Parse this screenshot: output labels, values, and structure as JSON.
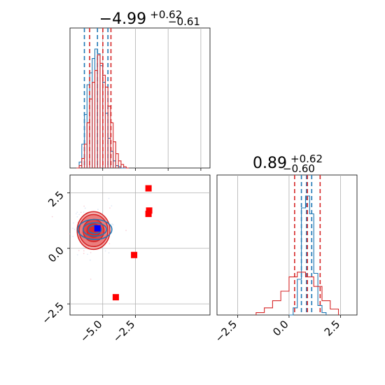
{
  "colors": {
    "series_a": "#1f77b4",
    "series_b": "#d62728",
    "grid": "#b0b0b0",
    "marker_red": "#ff0000",
    "marker_blue": "#0000ff"
  },
  "chart_data": [
    {
      "panel": "top-left",
      "type": "histogram",
      "title": {
        "main": "−4.99",
        "sup": "+0.62",
        "sub": "−0.61"
      },
      "xlim": [
        -7.5,
        3.2
      ],
      "grid": true,
      "series": [
        {
          "color": "#1f77b4",
          "bins": [
            -7.0,
            -6.8,
            -6.6,
            -6.4,
            -6.2,
            -6.0,
            -5.8,
            -5.6,
            -5.4,
            -5.2,
            -5.0,
            -4.8,
            -4.6,
            -4.4,
            -4.2,
            -4.0,
            -3.8,
            -3.6,
            -3.4,
            -3.2,
            -3.0
          ],
          "heights": [
            0,
            0.05,
            0.2,
            0.45,
            0.7,
            0.8,
            0.92,
            1.0,
            0.96,
            0.86,
            0.72,
            0.46,
            0.25,
            0.14,
            0.06,
            0.02,
            0.01,
            0,
            0,
            0,
            0
          ],
          "quantile_lines": [
            -6.4,
            -5.4,
            -4.6
          ]
        },
        {
          "color": "#d62728",
          "bins": [
            -7.0,
            -6.8,
            -6.6,
            -6.4,
            -6.2,
            -6.0,
            -5.8,
            -5.6,
            -5.4,
            -5.2,
            -5.0,
            -4.8,
            -4.6,
            -4.4,
            -4.2,
            -4.0,
            -3.8,
            -3.6,
            -3.4,
            -3.2,
            -3.0
          ],
          "heights": [
            0,
            0.02,
            0.08,
            0.2,
            0.38,
            0.58,
            0.72,
            0.82,
            0.95,
            0.88,
            0.78,
            0.68,
            0.52,
            0.38,
            0.22,
            0.12,
            0.06,
            0.03,
            0.01,
            0,
            0
          ],
          "quantile_lines": [
            -6.0,
            -4.99,
            -4.37
          ]
        }
      ]
    },
    {
      "panel": "bottom-right",
      "type": "histogram",
      "title": {
        "main": "0.89",
        "sup": "+0.62",
        "sub": "−0.60"
      },
      "xlim": [
        -3.5,
        3.3
      ],
      "x_ticks": [
        "−2.5",
        "0.0",
        "2.5"
      ],
      "grid": true,
      "series": [
        {
          "color": "#1f77b4",
          "bins": [
            0.0,
            0.2,
            0.4,
            0.6,
            0.8,
            1.0,
            1.2,
            1.4,
            1.6,
            1.8
          ],
          "heights": [
            0,
            0.06,
            0.3,
            0.9,
            1.0,
            0.85,
            0.35,
            0.08,
            0.02,
            0
          ],
          "quantile_lines": [
            0.6,
            0.85,
            1.1
          ]
        },
        {
          "color": "#d62728",
          "bins": [
            -1.6,
            -1.2,
            -0.8,
            -0.4,
            0.0,
            0.4,
            0.8,
            1.2,
            1.6,
            2.0,
            2.4
          ],
          "heights": [
            0.02,
            0.06,
            0.12,
            0.2,
            0.32,
            0.36,
            0.32,
            0.24,
            0.12,
            0.05,
            0.01
          ],
          "quantile_lines": [
            0.27,
            0.89,
            1.51
          ]
        }
      ]
    },
    {
      "panel": "bottom-left",
      "type": "scatter",
      "xlim": [
        -7.5,
        3.2
      ],
      "ylim": [
        -3.0,
        3.3
      ],
      "x_ticks": [
        "−5.0",
        "−2.5"
      ],
      "y_ticks": [
        "2.5",
        "0.0",
        "−2.5"
      ],
      "grid": true,
      "contours": [
        {
          "color": "#d62728",
          "center": [
            -5.7,
            0.8
          ],
          "radii": [
            [
              1.25,
              0.85
            ],
            [
              1.1,
              0.72
            ],
            [
              0.8,
              0.5
            ],
            [
              0.5,
              0.3
            ]
          ]
        },
        {
          "color": "#1f77b4",
          "center": [
            -5.6,
            0.85
          ],
          "radii": [
            [
              1.3,
              0.45
            ],
            [
              0.9,
              0.3
            ],
            [
              0.5,
              0.18
            ]
          ]
        }
      ],
      "red_squares": [
        [
          -1.5,
          2.7
        ],
        [
          -1.45,
          1.7
        ],
        [
          -1.5,
          1.55
        ],
        [
          -2.6,
          -0.3
        ],
        [
          -4.0,
          -2.2
        ]
      ],
      "blue_squares": [
        [
          -5.4,
          0.9
        ]
      ]
    }
  ]
}
